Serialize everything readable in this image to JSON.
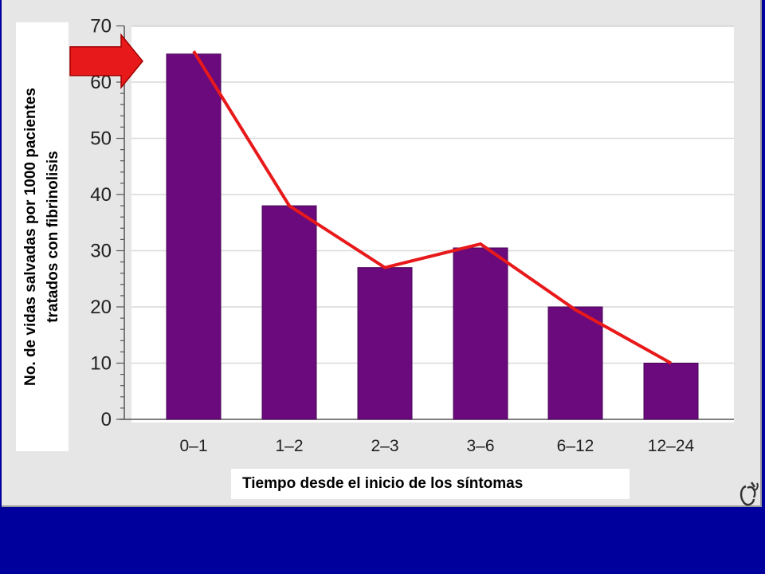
{
  "chart_data": {
    "type": "bar",
    "categories": [
      "0–1",
      "1–2",
      "2–3",
      "3–6",
      "6–12",
      "12–24"
    ],
    "values": [
      65,
      38,
      27,
      30.5,
      20,
      10
    ],
    "trend_line": [
      65.5,
      38,
      27,
      31.2,
      19.5,
      10
    ],
    "ylim": [
      0,
      70
    ],
    "yticks": [
      0,
      10,
      20,
      30,
      40,
      50,
      60,
      70
    ],
    "ylabel_line1": "No. de vidas salvadas por 1000 pacientes",
    "ylabel_line2": "tratados con fibrinolisis",
    "xlabel": "Tiempo desde el inicio de los síntomas",
    "grid": true,
    "colors": {
      "bar": "#6a0a7c",
      "trend_line": "#e8191b",
      "arrow": "#e8191b",
      "background": "#00009c"
    },
    "annotation_arrow_points_to": 65
  },
  "logo": {
    "name": "medical-logo-icon"
  }
}
